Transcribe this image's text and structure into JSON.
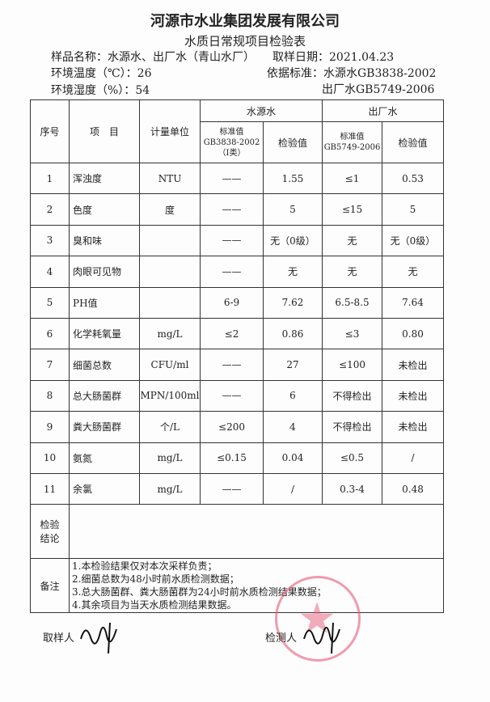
{
  "header": {
    "company": "河源市水业集团发展有限公司",
    "form_title": "水质日常规项目检验表"
  },
  "info": {
    "sample_label": "样品名称：",
    "sample_value": "水源水、出厂水（青山水厂）",
    "date_label": "取样日期：",
    "date_value": "2021.04.23",
    "temp_label": "环境温度（℃）：",
    "temp_value": "26",
    "basis_label": "依据标准：",
    "basis_source": "水源水GB3838-2002",
    "humidity_label": "环境湿度（%）：",
    "humidity_value": "54",
    "basis_plant": "出厂水GB5749-2006"
  },
  "table": {
    "h_no": "序号",
    "h_item": "项　目",
    "h_unit": "计量单位",
    "h_source": "水源水",
    "h_plant": "出厂水",
    "h_std1": "标准值",
    "h_std1_code": "GB3838-2002",
    "h_std1_class": "（Ⅰ类）",
    "h_val1": "检验值",
    "h_std2": "标准值",
    "h_std2_code": "GB5749-2006",
    "h_val2": "检验值",
    "rows": [
      {
        "no": "1",
        "item": "浑浊度",
        "unit": "NTU",
        "s1": "——",
        "v1": "1.55",
        "s2": "≤1",
        "v2": "0.53"
      },
      {
        "no": "2",
        "item": "色度",
        "unit": "度",
        "s1": "——",
        "v1": "5",
        "s2": "≤15",
        "v2": "5"
      },
      {
        "no": "3",
        "item": "臭和味",
        "unit": "",
        "s1": "——",
        "v1": "无（0级）",
        "s2": "无",
        "v2": "无（0级）"
      },
      {
        "no": "4",
        "item": "肉眼可见物",
        "unit": "",
        "s1": "——",
        "v1": "无",
        "s2": "无",
        "v2": "无"
      },
      {
        "no": "5",
        "item": "PH值",
        "unit": "",
        "s1": "6-9",
        "v1": "7.62",
        "s2": "6.5-8.5",
        "v2": "7.64"
      },
      {
        "no": "6",
        "item": "化学耗氧量",
        "unit": "mg/L",
        "s1": "≤2",
        "v1": "0.86",
        "s2": "≤3",
        "v2": "0.80"
      },
      {
        "no": "7",
        "item": "细菌总数",
        "unit": "CFU/ml",
        "s1": "——",
        "v1": "27",
        "s2": "≤100",
        "v2": "未检出"
      },
      {
        "no": "8",
        "item": "总大肠菌群",
        "unit": "MPN/100ml",
        "s1": "——",
        "v1": "6",
        "s2": "不得检出",
        "v2": "未检出"
      },
      {
        "no": "9",
        "item": "粪大肠菌群",
        "unit": "个/L",
        "s1": "≤200",
        "v1": "4",
        "s2": "不得检出",
        "v2": "未检出"
      },
      {
        "no": "10",
        "item": "氨氮",
        "unit": "mg/L",
        "s1": "≤0.15",
        "v1": "0.04",
        "s2": "≤0.5",
        "v2": "/"
      },
      {
        "no": "11",
        "item": "余氯",
        "unit": "mg/L",
        "s1": "——",
        "v1": "/",
        "s2": "0.3-4",
        "v2": "0.48"
      }
    ],
    "conclusion_label": "检验\n结论",
    "conclusion_value": "",
    "notes_label": "备注",
    "notes": [
      "1.本检验结果仅对本次采样负责；",
      "2.细菌总数为48小时前水质检测数据；",
      "3.总大肠菌群、粪大肠菌群为24小时前水质检测结果数据；",
      "4.其余项目为当天水质检测结果数据。"
    ]
  },
  "footer": {
    "sampler_label": "取样人",
    "tester_label": "检测人"
  },
  "stamp": {
    "text": "河源市水业集团发展有限公司",
    "color": "#e65a78"
  }
}
